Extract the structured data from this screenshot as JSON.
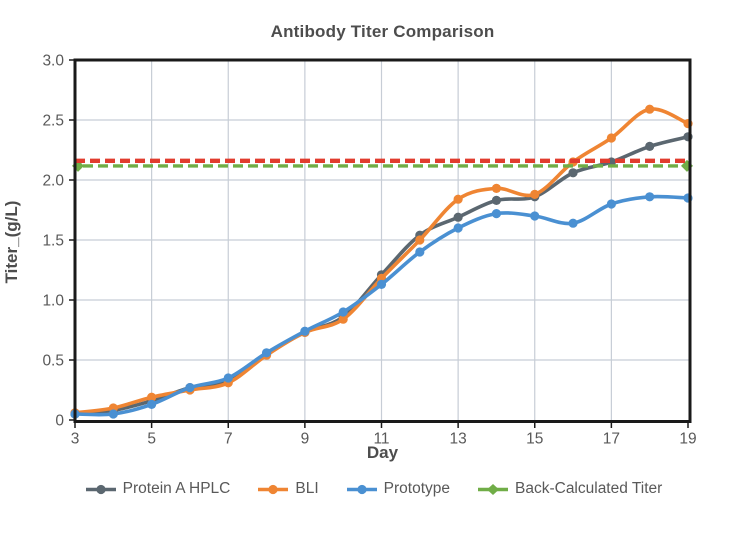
{
  "title": "Antibody Titer Comparison",
  "chart_data": {
    "type": "line",
    "title": "Antibody Titer Comparison",
    "xlabel": "Day",
    "ylabel": "Titer_(g/L)",
    "x": [
      3,
      4,
      5,
      6,
      7,
      8,
      9,
      10,
      11,
      12,
      13,
      14,
      15,
      16,
      17,
      18,
      19
    ],
    "xlim": [
      3,
      19
    ],
    "ylim": [
      0,
      3
    ],
    "x_ticks": [
      3,
      5,
      7,
      9,
      11,
      13,
      15,
      17,
      19
    ],
    "y_ticks": [
      0,
      0.5,
      1.0,
      1.5,
      2.0,
      2.5,
      3.0
    ],
    "grid": true,
    "legend_position": "bottom",
    "series": [
      {
        "name": "Protein A HPLC",
        "color": "#5B6770",
        "style": "solid",
        "marker": "circle",
        "marker_points": "all",
        "values": [
          0.05,
          0.08,
          0.16,
          0.27,
          0.33,
          0.55,
          0.73,
          0.86,
          1.21,
          1.54,
          1.69,
          1.83,
          1.86,
          2.06,
          2.15,
          2.28,
          2.36
        ]
      },
      {
        "name": "BLI",
        "color": "#EF8533",
        "style": "solid",
        "marker": "circle",
        "marker_points": "all",
        "values": [
          0.06,
          0.1,
          0.19,
          0.25,
          0.31,
          0.54,
          0.73,
          0.84,
          1.18,
          1.5,
          1.84,
          1.93,
          1.88,
          2.15,
          2.35,
          2.59,
          2.47
        ]
      },
      {
        "name": "Prototype",
        "color": "#4A90D2",
        "style": "solid",
        "marker": "circle",
        "marker_points": "all",
        "values": [
          0.05,
          0.05,
          0.13,
          0.27,
          0.35,
          0.56,
          0.74,
          0.9,
          1.13,
          1.4,
          1.6,
          1.72,
          1.7,
          1.64,
          1.8,
          1.86,
          1.85
        ]
      },
      {
        "name": "Back-Calculated Titer",
        "color": "#70AD47",
        "style": "dashed",
        "marker": "diamond",
        "marker_points": "endpoints",
        "values": [
          2.13,
          2.13,
          2.13,
          2.13,
          2.13,
          2.13,
          2.13,
          2.13,
          2.13,
          2.13,
          2.13,
          2.13,
          2.13,
          2.13,
          2.13,
          2.13,
          2.13
        ]
      }
    ],
    "reference_lines": [
      {
        "value": 2.16,
        "color": "#E13C2E",
        "style": "dashed"
      }
    ],
    "axis_color": "#1a1a1a",
    "grid_color": "#c7cdd6",
    "tick_label_color": "#595959"
  }
}
